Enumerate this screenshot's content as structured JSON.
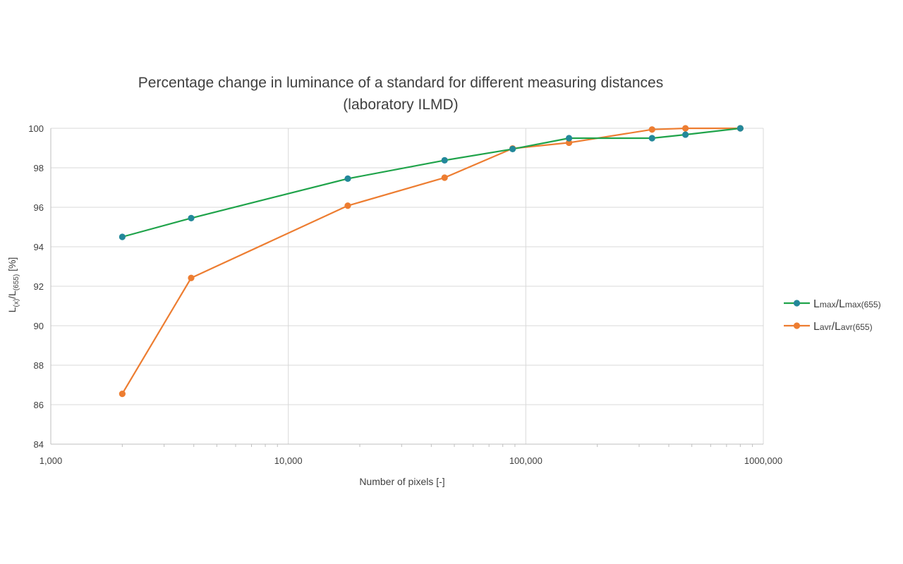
{
  "chart_data": {
    "type": "line",
    "title_lines": [
      "Percentage change in luminance of a standard for different measuring distances",
      "(laboratory ILMD)"
    ],
    "xlabel": "Number of pixels [-]",
    "ylabel": {
      "main": "L",
      "sub1": "(x)",
      "slash": "/L",
      "sub2": "(655)",
      "unit": " [%]"
    },
    "x_scale": "log",
    "xlim": [
      1000,
      1000000
    ],
    "ylim": [
      84,
      100
    ],
    "x_ticks": [
      1000,
      10000,
      100000,
      1000000
    ],
    "x_tick_labels": [
      "1,000",
      "10,000",
      "100,000",
      "1000,000"
    ],
    "y_ticks": [
      84,
      86,
      88,
      90,
      92,
      94,
      96,
      98,
      100
    ],
    "y_tick_labels": [
      "84",
      "86",
      "88",
      "90",
      "92",
      "94",
      "96",
      "98",
      "100"
    ],
    "grid": true,
    "legend_position": "right",
    "series": [
      {
        "name_parts": {
          "a": "L",
          "a_sub": "max",
          "slash": "/L",
          "b_sub": "max(655)"
        },
        "color": "#1fa34a",
        "marker_color": "#23889a",
        "x": [
          2000,
          3900,
          17800,
          45500,
          88000,
          152000,
          340000,
          470000,
          800000
        ],
        "y": [
          94.5,
          95.45,
          97.45,
          98.38,
          98.95,
          99.5,
          99.5,
          99.68,
          100
        ]
      },
      {
        "name_parts": {
          "a": "L",
          "a_sub": "avr",
          "slash": "/L",
          "b_sub": "avr(655)"
        },
        "color": "#ed7d31",
        "marker_color": "#ed7d31",
        "x": [
          2000,
          3900,
          17800,
          45500,
          88000,
          152000,
          340000,
          470000,
          800000
        ],
        "y": [
          86.55,
          92.42,
          96.08,
          97.5,
          98.98,
          99.27,
          99.94,
          100,
          100
        ]
      }
    ]
  }
}
